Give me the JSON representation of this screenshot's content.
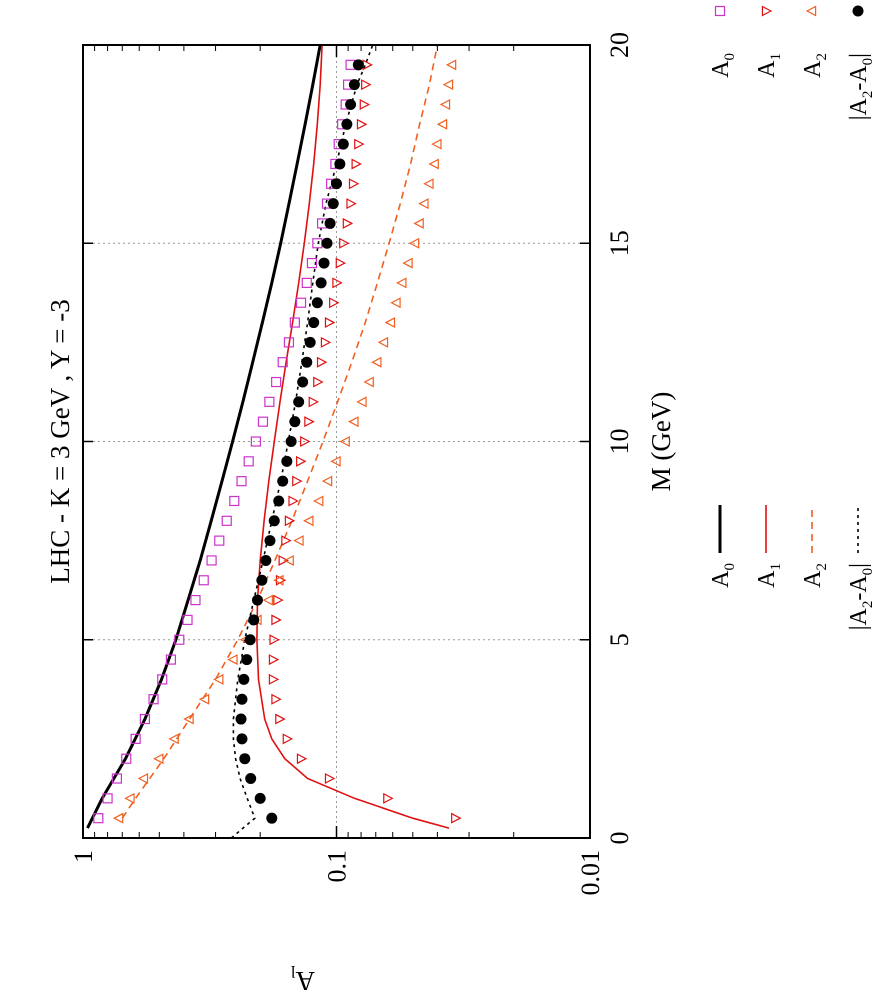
{
  "chart_data": {
    "type": "line",
    "title": "LHC  -  K = 3 GeV , Y = -3",
    "xlabel": "M  (GeV)",
    "ylabel": "A",
    "ylabel_sub": "l",
    "xlim": [
      0,
      20
    ],
    "ylim": [
      0.01,
      1
    ],
    "yscale": "log",
    "grid": true,
    "x_ticks": [
      0,
      5,
      10,
      15,
      20
    ],
    "x_tick_labels": [
      "0",
      "5",
      "10",
      "15",
      "20"
    ],
    "y_ticks": [
      0.01,
      0.1,
      1
    ],
    "y_tick_labels": [
      "0.01",
      "0.1",
      "1"
    ],
    "legend_placement": "outside-bottom",
    "lines": [
      {
        "name": "A",
        "sub": "0",
        "color": "#000000",
        "dash": "",
        "x": [
          0.25,
          1,
          2,
          3,
          4,
          5,
          6,
          7,
          8,
          9,
          10,
          11,
          12,
          13,
          14,
          15,
          16,
          17,
          18,
          19,
          20
        ],
        "y": [
          0.96,
          0.84,
          0.68,
          0.57,
          0.49,
          0.43,
          0.385,
          0.345,
          0.312,
          0.283,
          0.257,
          0.234,
          0.214,
          0.196,
          0.18,
          0.166,
          0.154,
          0.143,
          0.133,
          0.124,
          0.116
        ]
      },
      {
        "name": "A",
        "sub": "1",
        "color": "#e01010",
        "dash": "",
        "x": [
          0.25,
          0.5,
          1,
          1.5,
          2,
          2.5,
          3,
          4,
          5,
          6,
          7,
          8,
          9,
          10,
          11,
          12,
          13,
          14,
          15,
          16,
          17,
          18,
          19,
          20
        ],
        "y": [
          0.036,
          0.05,
          0.085,
          0.13,
          0.16,
          0.18,
          0.192,
          0.203,
          0.206,
          0.205,
          0.2,
          0.193,
          0.185,
          0.176,
          0.167,
          0.158,
          0.149,
          0.141,
          0.134,
          0.128,
          0.123,
          0.119,
          0.116,
          0.114
        ]
      },
      {
        "name": "A",
        "sub": "2",
        "color": "#f06020",
        "dash": "7,5",
        "x": [
          0.5,
          1,
          2,
          3,
          4,
          5,
          6,
          7,
          8,
          9,
          10,
          11,
          12,
          13,
          14,
          15,
          16,
          17,
          18,
          19,
          20
        ],
        "y": [
          0.7,
          0.62,
          0.48,
          0.38,
          0.3,
          0.245,
          0.205,
          0.175,
          0.15,
          0.13,
          0.113,
          0.099,
          0.087,
          0.077,
          0.069,
          0.062,
          0.056,
          0.051,
          0.047,
          0.043,
          0.04
        ]
      },
      {
        "name": "|A",
        "sub": "2",
        "tail": "-A",
        "tail_sub": "0",
        "tail_end": "|",
        "color": "#000000",
        "dash": "3,4",
        "x": [
          0,
          0.5,
          1,
          1.5,
          2,
          2.5,
          3,
          4,
          5,
          6,
          7,
          8,
          9,
          10,
          11,
          12,
          13,
          14,
          15,
          16,
          17,
          18,
          19,
          19.5,
          20
        ],
        "y": [
          0.26,
          0.21,
          0.225,
          0.24,
          0.25,
          0.255,
          0.255,
          0.245,
          0.23,
          0.212,
          0.195,
          0.18,
          0.166,
          0.155,
          0.145,
          0.137,
          0.13,
          0.124,
          0.118,
          0.11,
          0.1,
          0.092,
          0.083,
          0.077,
          0.072
        ]
      }
    ],
    "points": [
      {
        "name": "A",
        "sub": "0",
        "color": "#cc33cc",
        "marker": "square",
        "x": [
          0.5,
          1,
          1.5,
          2,
          2.5,
          3,
          3.5,
          4,
          4.5,
          5,
          5.5,
          6,
          6.5,
          7,
          7.5,
          8,
          8.5,
          9,
          9.5,
          10,
          10.5,
          11,
          11.5,
          12,
          12.5,
          13,
          13.5,
          14,
          14.5,
          15,
          15.5,
          16,
          16.5,
          17,
          17.5,
          18,
          18.5,
          19,
          19.5
        ],
        "y": [
          0.87,
          0.8,
          0.735,
          0.675,
          0.62,
          0.57,
          0.527,
          0.487,
          0.45,
          0.417,
          0.387,
          0.36,
          0.334,
          0.311,
          0.29,
          0.271,
          0.253,
          0.237,
          0.222,
          0.208,
          0.195,
          0.184,
          0.173,
          0.163,
          0.154,
          0.146,
          0.138,
          0.131,
          0.125,
          0.119,
          0.114,
          0.109,
          0.105,
          0.101,
          0.098,
          0.095,
          0.092,
          0.09,
          0.088
        ]
      },
      {
        "name": "A",
        "sub": "1",
        "color": "#e01010",
        "marker": "triangle-right",
        "x": [
          0.5,
          1,
          1.5,
          2,
          2.5,
          3,
          3.5,
          4,
          4.5,
          5,
          5.5,
          6,
          6.5,
          7,
          7.5,
          8,
          8.5,
          9,
          9.5,
          10,
          10.5,
          11,
          11.5,
          12,
          12.5,
          13,
          13.5,
          14,
          14.5,
          15,
          15.5,
          16,
          16.5,
          17,
          17.5,
          18,
          18.5,
          19,
          19.5
        ],
        "y": [
          0.034,
          0.063,
          0.107,
          0.138,
          0.157,
          0.168,
          0.174,
          0.178,
          0.178,
          0.177,
          0.174,
          0.171,
          0.167,
          0.163,
          0.159,
          0.154,
          0.149,
          0.144,
          0.139,
          0.134,
          0.129,
          0.124,
          0.119,
          0.115,
          0.111,
          0.107,
          0.103,
          0.1,
          0.097,
          0.094,
          0.091,
          0.088,
          0.086,
          0.084,
          0.082,
          0.08,
          0.078,
          0.077,
          0.076
        ]
      },
      {
        "name": "A",
        "sub": "2",
        "color": "#f06020",
        "marker": "triangle-left",
        "x": [
          0.5,
          1,
          1.5,
          2,
          2.5,
          3,
          3.5,
          4,
          4.5,
          5,
          5.5,
          6,
          6.5,
          7,
          7.5,
          8,
          8.5,
          9,
          9.5,
          10,
          10.5,
          11,
          11.5,
          12,
          12.5,
          13,
          13.5,
          14,
          14.5,
          15,
          15.5,
          16,
          16.5,
          17,
          17.5,
          18,
          18.5,
          19,
          19.5
        ],
        "y": [
          0.72,
          0.65,
          0.575,
          0.5,
          0.435,
          0.38,
          0.33,
          0.29,
          0.255,
          0.228,
          0.205,
          0.185,
          0.168,
          0.153,
          0.14,
          0.128,
          0.117,
          0.108,
          0.1,
          0.092,
          0.085,
          0.079,
          0.074,
          0.069,
          0.065,
          0.061,
          0.058,
          0.055,
          0.052,
          0.049,
          0.047,
          0.045,
          0.043,
          0.041,
          0.04,
          0.038,
          0.037,
          0.036,
          0.035
        ]
      },
      {
        "name": "|A",
        "sub": "2",
        "tail": "-A",
        "tail_sub": "0",
        "tail_end": "|",
        "color": "#000000",
        "marker": "circle",
        "x": [
          0.5,
          1,
          1.5,
          2,
          2.5,
          3,
          3.5,
          4,
          4.5,
          5,
          5.5,
          6,
          6.5,
          7,
          7.5,
          8,
          8.5,
          9,
          9.5,
          10,
          10.5,
          11,
          11.5,
          12,
          12.5,
          13,
          13.5,
          14,
          14.5,
          15,
          15.5,
          16,
          16.5,
          17,
          17.5,
          18,
          18.5,
          19,
          19.5
        ],
        "y": [
          0.18,
          0.2,
          0.218,
          0.23,
          0.236,
          0.238,
          0.236,
          0.232,
          0.226,
          0.219,
          0.212,
          0.205,
          0.197,
          0.19,
          0.183,
          0.176,
          0.169,
          0.163,
          0.157,
          0.151,
          0.146,
          0.141,
          0.136,
          0.131,
          0.127,
          0.123,
          0.119,
          0.115,
          0.112,
          0.109,
          0.106,
          0.103,
          0.1,
          0.097,
          0.094,
          0.091,
          0.088,
          0.085,
          0.082
        ]
      }
    ]
  }
}
